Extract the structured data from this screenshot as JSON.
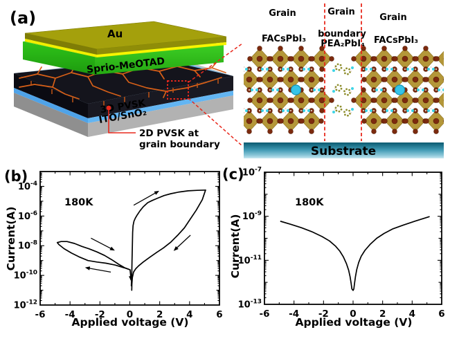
{
  "figure": {
    "panel_a": {
      "label": "(a)",
      "device": {
        "au_label": "Au",
        "htl_label": "Sprio-MeOTAD",
        "pvsk_label": "3D PVSK",
        "electrode_label": "ITO/SnO₂",
        "annotation_line1": "2D PVSK at",
        "annotation_line2": "grain boundary"
      },
      "crystal": {
        "grain_left_title": "Grain",
        "grain_left_formula": "FACsPbI₃",
        "boundary_title": "Grain",
        "boundary_line2": "boundary",
        "boundary_formula": "PEA₂PbI₄",
        "grain_right_title": "Grain",
        "grain_right_formula": "FACsPbI₃",
        "substrate_label": "Substrate"
      }
    },
    "colors": {
      "annotation_red": "#e8281c",
      "gold_top": "#a4a00c",
      "gold_rim": "#f5ef00",
      "htl_green": "#2fc41a",
      "pvsk_dark": "#14141c",
      "grain_line_orange": "#d86018",
      "sno2_blue": "#55a8ea",
      "substrate_gray": "#9a9a9a",
      "curve_black": "#000000",
      "crystal": {
        "octahedron": "#b49739",
        "octahedron_edge": "#8d7322",
        "iodine": "#7c2a0e",
        "iodine_edge": "#58200a",
        "fa_cyan": "#3fd4e6",
        "fa_pale": "#e3d2c8",
        "cs_cyan": "#35c4e8",
        "cs_edge": "#1693b5",
        "pea_olive": "#8e8e2e",
        "substrate_teal_dark": "#0b5a70",
        "substrate_teal_mid": "#3d98b2",
        "substrate_teal_light": "#c9e8f0"
      }
    }
  },
  "chart_data": [
    {
      "type": "line",
      "panel_id": "b",
      "panel_label": "(b)",
      "annotation": "180K",
      "xlabel": "Applied voltage (V)",
      "ylabel": "Current(A)",
      "xlim": [
        -6,
        6
      ],
      "x_major_ticks": [
        -6,
        -4,
        -2,
        0,
        2,
        4,
        6
      ],
      "ylog_range_exp": [
        -12,
        -3
      ],
      "y_labeled_exps": [
        -4,
        -6,
        -8,
        -10,
        -12
      ],
      "grid": false,
      "series": [
        {
          "name": "positive-sweep-up",
          "points": [
            [
              0.1,
              -10.7
            ],
            [
              0.13,
              -10.0
            ],
            [
              0.15,
              -9.0
            ],
            [
              0.17,
              -8.0
            ],
            [
              0.19,
              -7.1
            ],
            [
              0.22,
              -6.65
            ],
            [
              0.28,
              -6.35
            ],
            [
              0.38,
              -6.12
            ],
            [
              0.5,
              -5.92
            ],
            [
              0.68,
              -5.65
            ],
            [
              0.9,
              -5.38
            ],
            [
              1.2,
              -5.1
            ],
            [
              1.5,
              -4.95
            ],
            [
              1.85,
              -4.8
            ],
            [
              2.3,
              -4.62
            ],
            [
              2.75,
              -4.49
            ],
            [
              3.3,
              -4.38
            ],
            [
              3.9,
              -4.3
            ],
            [
              4.5,
              -4.27
            ],
            [
              5.07,
              -4.25
            ]
          ]
        },
        {
          "name": "positive-sweep-down",
          "points": [
            [
              5.07,
              -4.25
            ],
            [
              4.85,
              -4.9
            ],
            [
              4.45,
              -5.6
            ],
            [
              4.05,
              -6.2
            ],
            [
              3.65,
              -6.8
            ],
            [
              3.25,
              -7.25
            ],
            [
              2.75,
              -7.75
            ],
            [
              2.25,
              -8.15
            ],
            [
              1.8,
              -8.45
            ],
            [
              1.3,
              -8.8
            ],
            [
              0.9,
              -9.1
            ],
            [
              0.6,
              -9.35
            ],
            [
              0.4,
              -9.55
            ],
            [
              0.25,
              -9.78
            ],
            [
              0.17,
              -10.15
            ],
            [
              0.14,
              -10.6
            ],
            [
              0.13,
              -11.0
            ]
          ]
        },
        {
          "name": "negative-sweep-out",
          "points": [
            [
              -0.05,
              -9.6
            ],
            [
              -0.4,
              -9.48
            ],
            [
              -1.0,
              -9.3
            ],
            [
              -1.6,
              -9.18
            ],
            [
              -2.2,
              -9.1
            ],
            [
              -2.8,
              -9.0
            ],
            [
              -3.4,
              -8.75
            ],
            [
              -3.9,
              -8.5
            ],
            [
              -4.4,
              -8.2
            ],
            [
              -4.75,
              -7.92
            ],
            [
              -4.85,
              -7.79
            ]
          ]
        },
        {
          "name": "negative-sweep-back",
          "points": [
            [
              -4.85,
              -7.79
            ],
            [
              -4.6,
              -7.72
            ],
            [
              -4.2,
              -7.72
            ],
            [
              -3.7,
              -7.85
            ],
            [
              -3.2,
              -8.05
            ],
            [
              -2.7,
              -8.22
            ],
            [
              -2.2,
              -8.42
            ],
            [
              -1.7,
              -8.65
            ],
            [
              -1.2,
              -8.95
            ],
            [
              -0.75,
              -9.25
            ],
            [
              -0.35,
              -9.48
            ],
            [
              -0.1,
              -9.58
            ],
            [
              0.0,
              -9.62
            ]
          ]
        },
        {
          "name": "zero-spike",
          "points": [
            [
              0.02,
              -9.62
            ],
            [
              0.05,
              -9.95
            ],
            [
              0.08,
              -10.3
            ]
          ]
        }
      ],
      "arrows": [
        [
          0.26,
          -5.27,
          1.97,
          -4.3
        ],
        [
          4.06,
          -7.29,
          2.93,
          -8.35
        ],
        [
          -2.6,
          -7.49,
          -1.0,
          -8.33
        ],
        [
          -1.27,
          -9.78,
          -3.0,
          -9.47
        ],
        [
          0.05,
          -9.95,
          0.09,
          -10.38
        ]
      ]
    },
    {
      "type": "line",
      "panel_id": "c",
      "panel_label": "(c)",
      "annotation": "180K",
      "xlabel": "Applied voltage (V)",
      "ylabel": "Current(A)",
      "xlim": [
        -6,
        6
      ],
      "x_major_ticks": [
        -6,
        -4,
        -2,
        0,
        2,
        4,
        6
      ],
      "ylog_range_exp": [
        -13,
        -7
      ],
      "y_labeled_exps": [
        -7,
        -9,
        -11,
        -13
      ],
      "grid": false,
      "series": [
        {
          "name": "iv-curve",
          "points": [
            [
              -4.9,
              -9.23
            ],
            [
              -4.2,
              -9.37
            ],
            [
              -3.5,
              -9.52
            ],
            [
              -2.8,
              -9.7
            ],
            [
              -2.1,
              -9.92
            ],
            [
              -1.6,
              -10.12
            ],
            [
              -1.2,
              -10.35
            ],
            [
              -0.9,
              -10.58
            ],
            [
              -0.65,
              -10.85
            ],
            [
              -0.45,
              -11.15
            ],
            [
              -0.3,
              -11.45
            ],
            [
              -0.2,
              -11.75
            ],
            [
              -0.13,
              -12.05
            ],
            [
              -0.08,
              -12.3
            ],
            [
              0.0,
              -12.37
            ],
            [
              0.05,
              -12.3
            ],
            [
              0.1,
              -12.05
            ],
            [
              0.16,
              -11.75
            ],
            [
              0.25,
              -11.42
            ],
            [
              0.38,
              -11.1
            ],
            [
              0.55,
              -10.82
            ],
            [
              0.8,
              -10.55
            ],
            [
              1.15,
              -10.28
            ],
            [
              1.6,
              -10.0
            ],
            [
              2.1,
              -9.78
            ],
            [
              2.7,
              -9.57
            ],
            [
              3.4,
              -9.4
            ],
            [
              4.2,
              -9.22
            ],
            [
              5.15,
              -9.02
            ]
          ]
        }
      ],
      "arrows": []
    }
  ]
}
